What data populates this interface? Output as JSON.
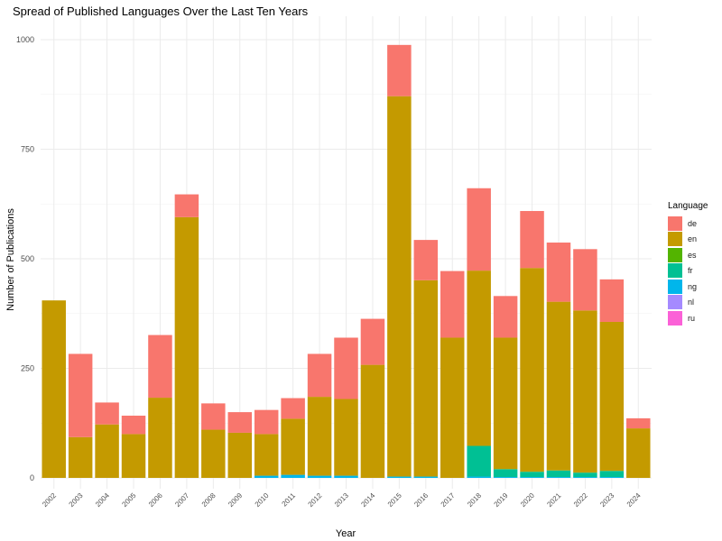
{
  "chart_data": {
    "type": "bar",
    "stacked": true,
    "title": "Spread of Published Languages Over the Last Ten Years",
    "xlabel": "Year",
    "ylabel": "Number of Publications",
    "ylim": [
      0,
      1000
    ],
    "yticks": [
      "0",
      "250",
      "500",
      "750",
      "1000"
    ],
    "grid": true,
    "legend_position": "right",
    "legend_title": "Language",
    "categories": [
      "2002",
      "2003",
      "2004",
      "2005",
      "2006",
      "2007",
      "2008",
      "2009",
      "2010",
      "2011",
      "2012",
      "2013",
      "2014",
      "2015",
      "2016",
      "2017",
      "2018",
      "2019",
      "2020",
      "2021",
      "2022",
      "2023",
      "2024"
    ],
    "series": [
      {
        "name": "de",
        "color": "#F8766D",
        "values": [
          0,
          190,
          50,
          42,
          143,
          52,
          60,
          47,
          55,
          47,
          98,
          140,
          105,
          117,
          92,
          152,
          188,
          95,
          130,
          135,
          140,
          97,
          23
        ]
      },
      {
        "name": "en",
        "color": "#C49A00",
        "values": [
          405,
          93,
          122,
          100,
          183,
          595,
          110,
          103,
          95,
          128,
          180,
          175,
          258,
          868,
          448,
          320,
          400,
          300,
          465,
          385,
          370,
          340,
          113
        ]
      },
      {
        "name": "es",
        "color": "#53B400",
        "values": [
          0,
          0,
          0,
          0,
          0,
          0,
          0,
          0,
          0,
          0,
          0,
          0,
          0,
          0,
          0,
          0,
          0,
          0,
          0,
          0,
          0,
          0,
          0
        ]
      },
      {
        "name": "fr",
        "color": "#00C094",
        "values": [
          0,
          0,
          0,
          0,
          0,
          0,
          0,
          0,
          0,
          0,
          0,
          0,
          0,
          0,
          0,
          0,
          70,
          18,
          12,
          15,
          10,
          14,
          0
        ]
      },
      {
        "name": "ng",
        "color": "#00B6EB",
        "values": [
          0,
          0,
          0,
          0,
          0,
          0,
          0,
          0,
          5,
          7,
          5,
          5,
          0,
          3,
          3,
          0,
          3,
          2,
          2,
          2,
          2,
          2,
          0
        ]
      },
      {
        "name": "nl",
        "color": "#A58AFF",
        "values": [
          0,
          0,
          0,
          0,
          0,
          0,
          0,
          0,
          0,
          0,
          0,
          0,
          0,
          0,
          0,
          0,
          0,
          0,
          0,
          0,
          0,
          0,
          0
        ]
      },
      {
        "name": "ru",
        "color": "#FB61D7",
        "values": [
          0,
          0,
          0,
          0,
          0,
          0,
          0,
          0,
          0,
          0,
          0,
          0,
          0,
          0,
          0,
          0,
          0,
          0,
          0,
          0,
          0,
          0,
          0
        ]
      }
    ]
  }
}
